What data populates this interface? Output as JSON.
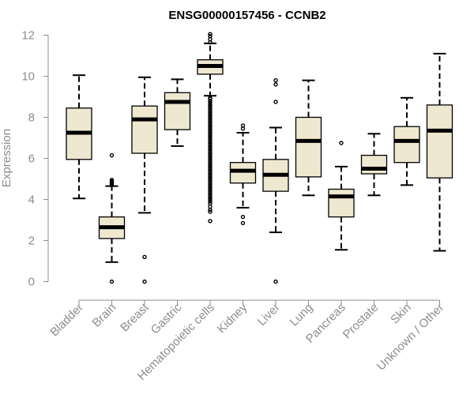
{
  "chart_data": {
    "type": "box",
    "title": "ENSG00000157456 - CCNB2",
    "xlabel": "",
    "ylabel": "Expression",
    "ylim": [
      0,
      12
    ],
    "yticks": [
      0,
      2,
      4,
      6,
      8,
      10,
      12
    ],
    "grid": false,
    "colors": {
      "box_fill": "#efe8d0",
      "box_stroke": "#000000",
      "axis": "#8c8c8c",
      "tick_label": "#8c8c8c",
      "title": "#000000"
    },
    "categories": [
      "Bladder",
      "Brain",
      "Breast",
      "Gastric",
      "Hematopoietic cells",
      "Kidney",
      "Liver",
      "Lung",
      "Pancreas",
      "Prostate",
      "Skin",
      "Unknown / Other"
    ],
    "boxes": [
      {
        "category": "Bladder",
        "whisker_low": 4.05,
        "q1": 5.95,
        "median": 7.25,
        "q3": 8.45,
        "whisker_high": 10.05,
        "outliers": []
      },
      {
        "category": "Brain",
        "whisker_low": 0.95,
        "q1": 2.1,
        "median": 2.65,
        "q3": 3.15,
        "whisker_high": 4.65,
        "outliers": [
          0.0,
          4.7,
          4.75,
          4.8,
          4.85,
          4.9,
          4.95,
          6.15
        ]
      },
      {
        "category": "Breast",
        "whisker_low": 3.35,
        "q1": 6.25,
        "median": 7.9,
        "q3": 8.55,
        "whisker_high": 9.95,
        "outliers": [
          0.0,
          1.2
        ]
      },
      {
        "category": "Gastric",
        "whisker_low": 6.6,
        "q1": 7.4,
        "median": 8.75,
        "q3": 9.2,
        "whisker_high": 9.85,
        "outliers": []
      },
      {
        "category": "Hematopoietic cells",
        "whisker_low": 9.05,
        "q1": 10.1,
        "median": 10.5,
        "q3": 10.8,
        "whisker_high": 11.6,
        "outliers": [
          2.95,
          3.4,
          3.5,
          3.65,
          3.8,
          3.9,
          4.0,
          4.1,
          4.2,
          4.3,
          4.4,
          4.5,
          4.6,
          4.7,
          4.8,
          4.9,
          5.0,
          5.1,
          5.2,
          5.3,
          5.4,
          5.5,
          5.6,
          5.7,
          5.8,
          5.9,
          6.0,
          6.1,
          6.2,
          6.3,
          6.4,
          6.5,
          6.6,
          6.7,
          6.8,
          6.9,
          7.0,
          7.1,
          7.2,
          7.3,
          7.4,
          7.5,
          7.6,
          7.7,
          7.8,
          7.9,
          8.0,
          8.1,
          8.2,
          8.3,
          8.4,
          8.5,
          8.6,
          8.7,
          8.8,
          8.9,
          8.95,
          11.65,
          11.8,
          11.95,
          12.05
        ]
      },
      {
        "category": "Kidney",
        "whisker_low": 3.6,
        "q1": 4.8,
        "median": 5.4,
        "q3": 5.8,
        "whisker_high": 7.25,
        "outliers": [
          2.85,
          3.15,
          7.45,
          7.6
        ]
      },
      {
        "category": "Liver",
        "whisker_low": 2.4,
        "q1": 4.4,
        "median": 5.2,
        "q3": 5.95,
        "whisker_high": 7.5,
        "outliers": [
          0.0,
          8.75,
          9.6,
          9.8
        ]
      },
      {
        "category": "Lung",
        "whisker_low": 4.2,
        "q1": 5.1,
        "median": 6.85,
        "q3": 8.0,
        "whisker_high": 9.8,
        "outliers": []
      },
      {
        "category": "Pancreas",
        "whisker_low": 1.55,
        "q1": 3.15,
        "median": 4.15,
        "q3": 4.5,
        "whisker_high": 5.6,
        "outliers": [
          6.75
        ]
      },
      {
        "category": "Prostate",
        "whisker_low": 4.2,
        "q1": 5.25,
        "median": 5.5,
        "q3": 6.15,
        "whisker_high": 7.2,
        "outliers": []
      },
      {
        "category": "Skin",
        "whisker_low": 4.7,
        "q1": 5.8,
        "median": 6.85,
        "q3": 7.55,
        "whisker_high": 8.95,
        "outliers": []
      },
      {
        "category": "Unknown / Other",
        "whisker_low": 1.5,
        "q1": 5.05,
        "median": 7.35,
        "q3": 8.6,
        "whisker_high": 11.1,
        "outliers": []
      }
    ]
  }
}
